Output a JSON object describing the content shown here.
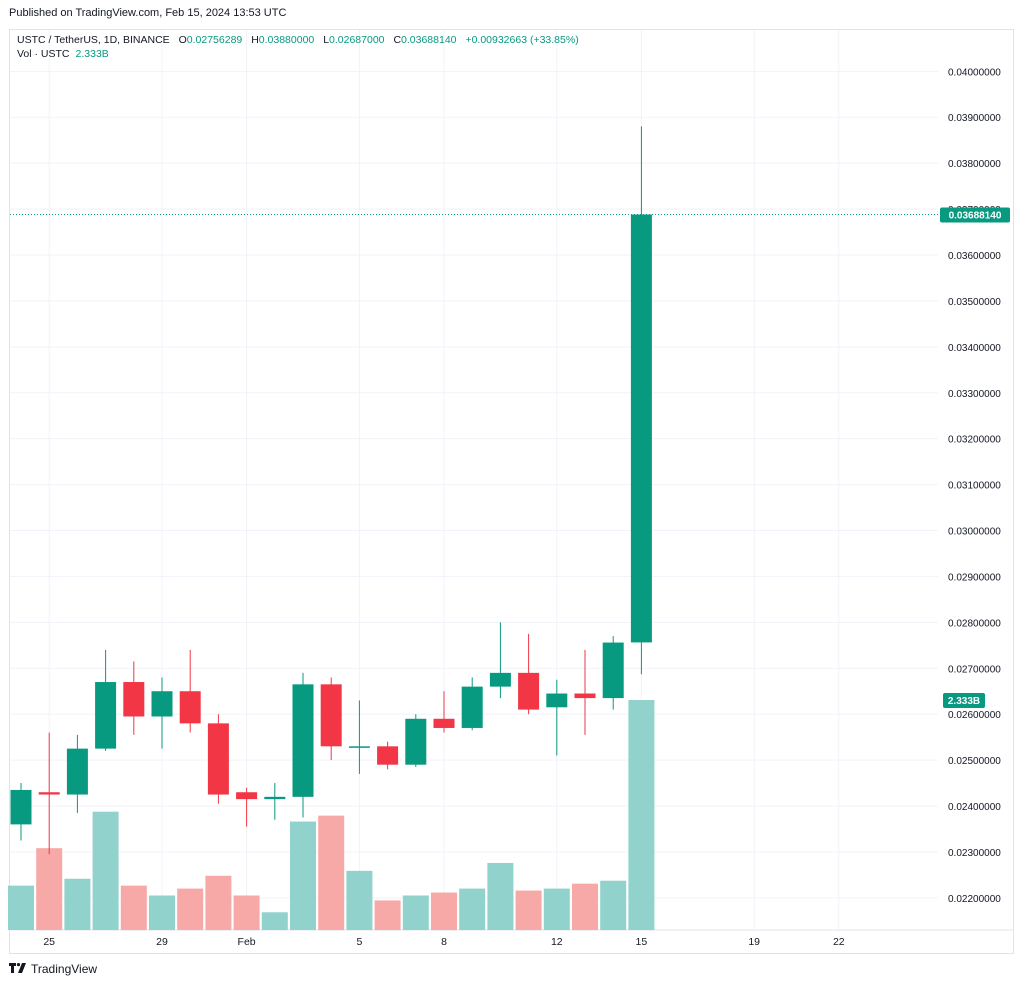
{
  "header": {
    "published": "Published on TradingView.com, Feb 15, 2024 13:53 UTC"
  },
  "legend": {
    "symbol": "USTC / TetherUS, 1D, BINANCE",
    "open_label": "O",
    "open": "0.02756289",
    "high_label": "H",
    "high": "0.03880000",
    "low_label": "L",
    "low": "0.02687000",
    "close_label": "C",
    "close": "0.03688140",
    "change": "+0.00932663 (+33.85%)",
    "vol_label": "Vol · USTC",
    "vol_value": "2.333B"
  },
  "footer": {
    "brand": "TradingView",
    "logo": "tradingview-logo-icon"
  },
  "colors": {
    "up": "#089981",
    "down": "#f23645",
    "vol_up": "#92d2cc",
    "vol_down": "#f7a9a7",
    "grid": "#f0f3fa"
  },
  "chart_data": {
    "type": "candlestick",
    "price_axis": {
      "ylim": [
        0.0213,
        0.0409
      ],
      "ticks": [
        "0.02200000",
        "0.02300000",
        "0.02400000",
        "0.02500000",
        "0.02600000",
        "0.02700000",
        "0.02800000",
        "0.02900000",
        "0.03000000",
        "0.03100000",
        "0.03200000",
        "0.03300000",
        "0.03400000",
        "0.03500000",
        "0.03600000",
        "0.03700000",
        "0.03800000",
        "0.03900000",
        "0.04000000"
      ],
      "tick_values": [
        0.022,
        0.023,
        0.024,
        0.025,
        0.026,
        0.027,
        0.028,
        0.029,
        0.03,
        0.031,
        0.032,
        0.033,
        0.034,
        0.035,
        0.036,
        0.037,
        0.038,
        0.039,
        0.04
      ],
      "last_price_label": "0.03688140",
      "last_price": 0.0368814,
      "volume_label": "2.333B"
    },
    "x_ticks": [
      {
        "label": "25",
        "day": "2024-01-25"
      },
      {
        "label": "29",
        "day": "2024-01-29"
      },
      {
        "label": "Feb",
        "day": "2024-02-01"
      },
      {
        "label": "5",
        "day": "2024-02-05"
      },
      {
        "label": "8",
        "day": "2024-02-08"
      },
      {
        "label": "12",
        "day": "2024-02-12"
      },
      {
        "label": "15",
        "day": "2024-02-15"
      },
      {
        "label": "19",
        "day": "2024-02-19"
      },
      {
        "label": "22",
        "day": "2024-02-22"
      }
    ],
    "x_range": [
      "2024-01-24",
      "2024-02-23"
    ],
    "candles": [
      {
        "date": "2024-01-24",
        "o": 0.0236,
        "h": 0.0245,
        "l": 0.02325,
        "c": 0.02435,
        "v": 0.45
      },
      {
        "date": "2024-01-25",
        "o": 0.0243,
        "h": 0.0256,
        "l": 0.02295,
        "c": 0.02425,
        "v": 0.83
      },
      {
        "date": "2024-01-26",
        "o": 0.02425,
        "h": 0.02555,
        "l": 0.02385,
        "c": 0.02525,
        "v": 0.52
      },
      {
        "date": "2024-01-27",
        "o": 0.02525,
        "h": 0.0274,
        "l": 0.0252,
        "c": 0.0267,
        "v": 1.2
      },
      {
        "date": "2024-01-28",
        "o": 0.0267,
        "h": 0.02715,
        "l": 0.02555,
        "c": 0.02595,
        "v": 0.45
      },
      {
        "date": "2024-01-29",
        "o": 0.02595,
        "h": 0.0268,
        "l": 0.02525,
        "c": 0.0265,
        "v": 0.35
      },
      {
        "date": "2024-01-30",
        "o": 0.0265,
        "h": 0.0274,
        "l": 0.0256,
        "c": 0.0258,
        "v": 0.42
      },
      {
        "date": "2024-01-31",
        "o": 0.0258,
        "h": 0.026,
        "l": 0.02405,
        "c": 0.02425,
        "v": 0.55
      },
      {
        "date": "2024-02-01",
        "o": 0.0243,
        "h": 0.0244,
        "l": 0.02355,
        "c": 0.02415,
        "v": 0.35
      },
      {
        "date": "2024-02-02",
        "o": 0.02415,
        "h": 0.0245,
        "l": 0.0237,
        "c": 0.0242,
        "v": 0.18
      },
      {
        "date": "2024-02-03",
        "o": 0.0242,
        "h": 0.0269,
        "l": 0.02375,
        "c": 0.02665,
        "v": 1.1
      },
      {
        "date": "2024-02-04",
        "o": 0.02665,
        "h": 0.0268,
        "l": 0.025,
        "c": 0.0253,
        "v": 1.16
      },
      {
        "date": "2024-02-05",
        "o": 0.0253,
        "h": 0.0263,
        "l": 0.0247,
        "c": 0.0253,
        "v": 0.6
      },
      {
        "date": "2024-02-06",
        "o": 0.0253,
        "h": 0.0254,
        "l": 0.0248,
        "c": 0.0249,
        "v": 0.3
      },
      {
        "date": "2024-02-07",
        "o": 0.0249,
        "h": 0.026,
        "l": 0.02485,
        "c": 0.0259,
        "v": 0.35
      },
      {
        "date": "2024-02-08",
        "o": 0.0259,
        "h": 0.0265,
        "l": 0.0256,
        "c": 0.0257,
        "v": 0.38
      },
      {
        "date": "2024-02-09",
        "o": 0.0257,
        "h": 0.0268,
        "l": 0.02565,
        "c": 0.0266,
        "v": 0.42
      },
      {
        "date": "2024-02-10",
        "o": 0.0266,
        "h": 0.028,
        "l": 0.02635,
        "c": 0.0269,
        "v": 0.68
      },
      {
        "date": "2024-02-11",
        "o": 0.0269,
        "h": 0.02775,
        "l": 0.026,
        "c": 0.0261,
        "v": 0.4
      },
      {
        "date": "2024-02-12",
        "o": 0.02615,
        "h": 0.02675,
        "l": 0.0251,
        "c": 0.02645,
        "v": 0.42
      },
      {
        "date": "2024-02-13",
        "o": 0.02645,
        "h": 0.0274,
        "l": 0.02555,
        "c": 0.02635,
        "v": 0.47
      },
      {
        "date": "2024-02-14",
        "o": 0.02635,
        "h": 0.0277,
        "l": 0.0261,
        "c": 0.02756,
        "v": 0.5
      },
      {
        "date": "2024-02-15",
        "o": 0.02756289,
        "h": 0.0388,
        "l": 0.02687,
        "c": 0.0368814,
        "v": 2.333
      }
    ]
  }
}
